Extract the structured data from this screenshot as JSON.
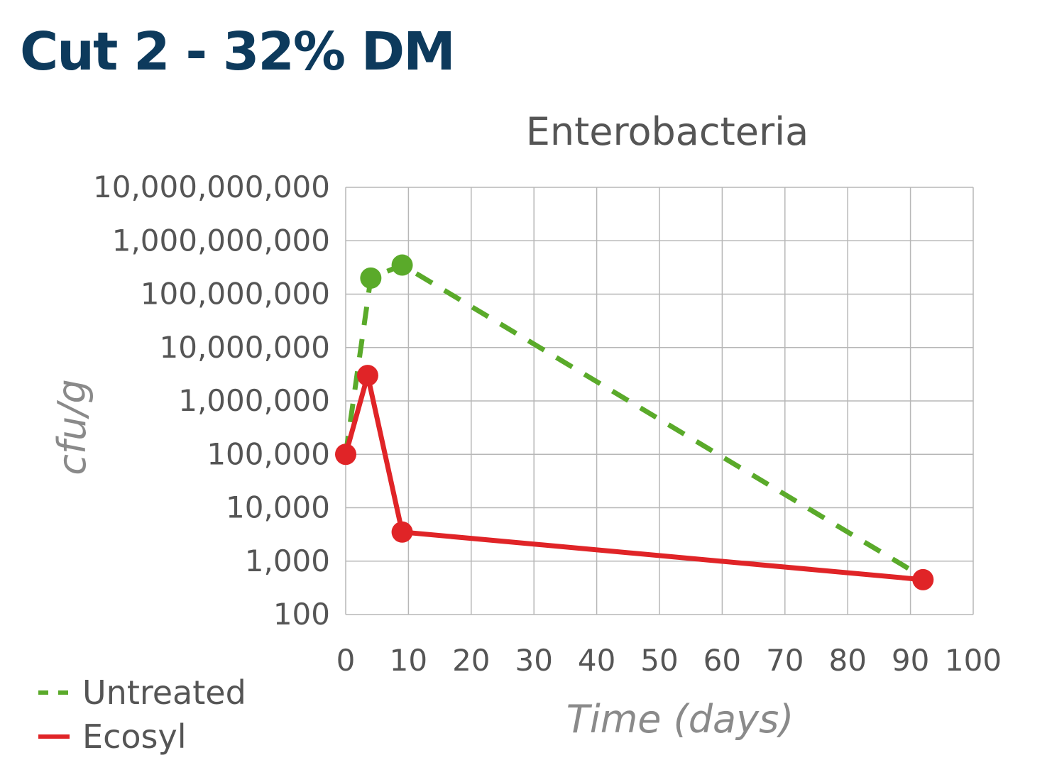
{
  "heading": "Cut 2 - 32% DM",
  "colors": {
    "heading": "#0d3a5c",
    "untreated": "#5aaa2a",
    "ecosyl": "#e02427"
  },
  "chart_data": {
    "type": "line",
    "title": "Enterobacteria",
    "xlabel": "Time (days)",
    "ylabel": "cfu/g",
    "xlim": [
      0,
      100
    ],
    "x_ticks": [
      0,
      10,
      20,
      30,
      40,
      50,
      60,
      70,
      80,
      90,
      100
    ],
    "y_scale": "log",
    "ylim": [
      100,
      10000000000
    ],
    "y_ticks": [
      100,
      1000,
      10000,
      100000,
      1000000,
      10000000,
      100000000,
      1000000000,
      10000000000
    ],
    "y_tick_labels": [
      "100",
      "1,000",
      "10,000",
      "100,000",
      "1,000,000",
      "10,000,000",
      "100,000,000",
      "1,000,000,000",
      "10,000,000,000"
    ],
    "grid": true,
    "legend_position": "bottom-left",
    "series": [
      {
        "name": "Untreated",
        "style": "dashed",
        "x": [
          0,
          4,
          9,
          92
        ],
        "y": [
          100000,
          200000000,
          350000000,
          500
        ],
        "markers_at": [
          1,
          2
        ]
      },
      {
        "name": "Ecosyl",
        "style": "solid",
        "x": [
          0,
          3.5,
          9,
          92
        ],
        "y": [
          100000,
          3000000,
          3500,
          450
        ],
        "markers_at": [
          0,
          1,
          2,
          3
        ]
      }
    ]
  }
}
